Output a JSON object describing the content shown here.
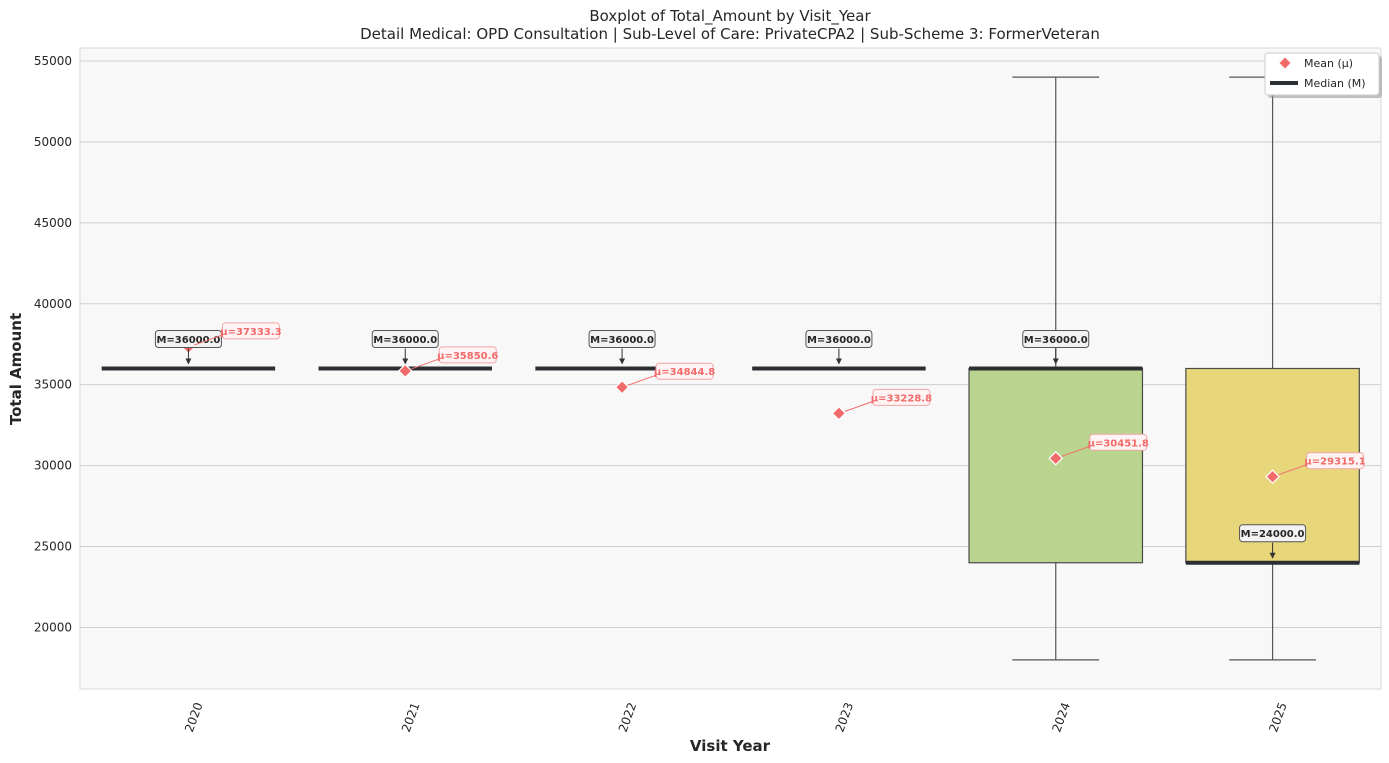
{
  "chart_data": {
    "type": "box",
    "title": "Boxplot of Total_Amount by Visit_Year",
    "subtitle": "Detail Medical: OPD Consultation | Sub-Level of Care: PrivateCPA2 | Sub-Scheme 3: FormerVeteran",
    "xlabel": "Visit Year",
    "ylabel": "Total Amount",
    "ylim": [
      16200,
      55800
    ],
    "yticks": [
      20000,
      25000,
      30000,
      35000,
      40000,
      45000,
      50000,
      55000
    ],
    "grid": true,
    "legend": {
      "placement": "top-right",
      "entries": [
        {
          "label": "Mean (μ)",
          "marker": "diamond",
          "color": "#f26b6b"
        },
        {
          "label": "Median (M)",
          "marker": "line",
          "color": "#2b2f33"
        }
      ]
    },
    "categories": [
      "2020",
      "2021",
      "2022",
      "2023",
      "2024",
      "2025"
    ],
    "boxes": [
      {
        "category": "2020",
        "whisker_low": 36000,
        "q1": 36000,
        "median": 36000,
        "q3": 36000,
        "whisker_high": 36000,
        "mean": 37333.3,
        "color": "#bcd6ec",
        "median_label": "M=36000.0",
        "mean_label": "μ=37333.3"
      },
      {
        "category": "2021",
        "whisker_low": 36000,
        "q1": 36000,
        "median": 36000,
        "q3": 36000,
        "whisker_high": 36000,
        "mean": 35850.6,
        "color": "#c9e2c0",
        "median_label": "M=36000.0",
        "mean_label": "μ=35850.6"
      },
      {
        "category": "2022",
        "whisker_low": 36000,
        "q1": 36000,
        "median": 36000,
        "q3": 36000,
        "whisker_high": 36000,
        "mean": 34844.8,
        "color": "#e3d5ea",
        "median_label": "M=36000.0",
        "mean_label": "μ=34844.8"
      },
      {
        "category": "2023",
        "whisker_low": 36000,
        "q1": 36000,
        "median": 36000,
        "q3": 36000,
        "whisker_high": 36000,
        "mean": 33228.8,
        "color": "#f5d8b4",
        "median_label": "M=36000.0",
        "mean_label": "μ=33228.8"
      },
      {
        "category": "2024",
        "whisker_low": 18000,
        "q1": 24000,
        "median": 36000,
        "q3": 36000,
        "whisker_high": 54000,
        "mean": 30451.8,
        "color": "#b9d58f",
        "median_label": "M=36000.0",
        "mean_label": "μ=30451.8"
      },
      {
        "category": "2025",
        "whisker_low": 18000,
        "q1": 24000,
        "median": 24000,
        "q3": 36000,
        "whisker_high": 54000,
        "mean": 29315.1,
        "color": "#e8d67a",
        "median_label": "M=24000.0",
        "mean_label": "μ=29315.1"
      }
    ],
    "colors": {
      "plot_background": "#f8f8f8",
      "grid": "#cfcfcf",
      "mean": "#f26b6b",
      "median": "#2b2f33",
      "whisker": "#555555"
    }
  }
}
